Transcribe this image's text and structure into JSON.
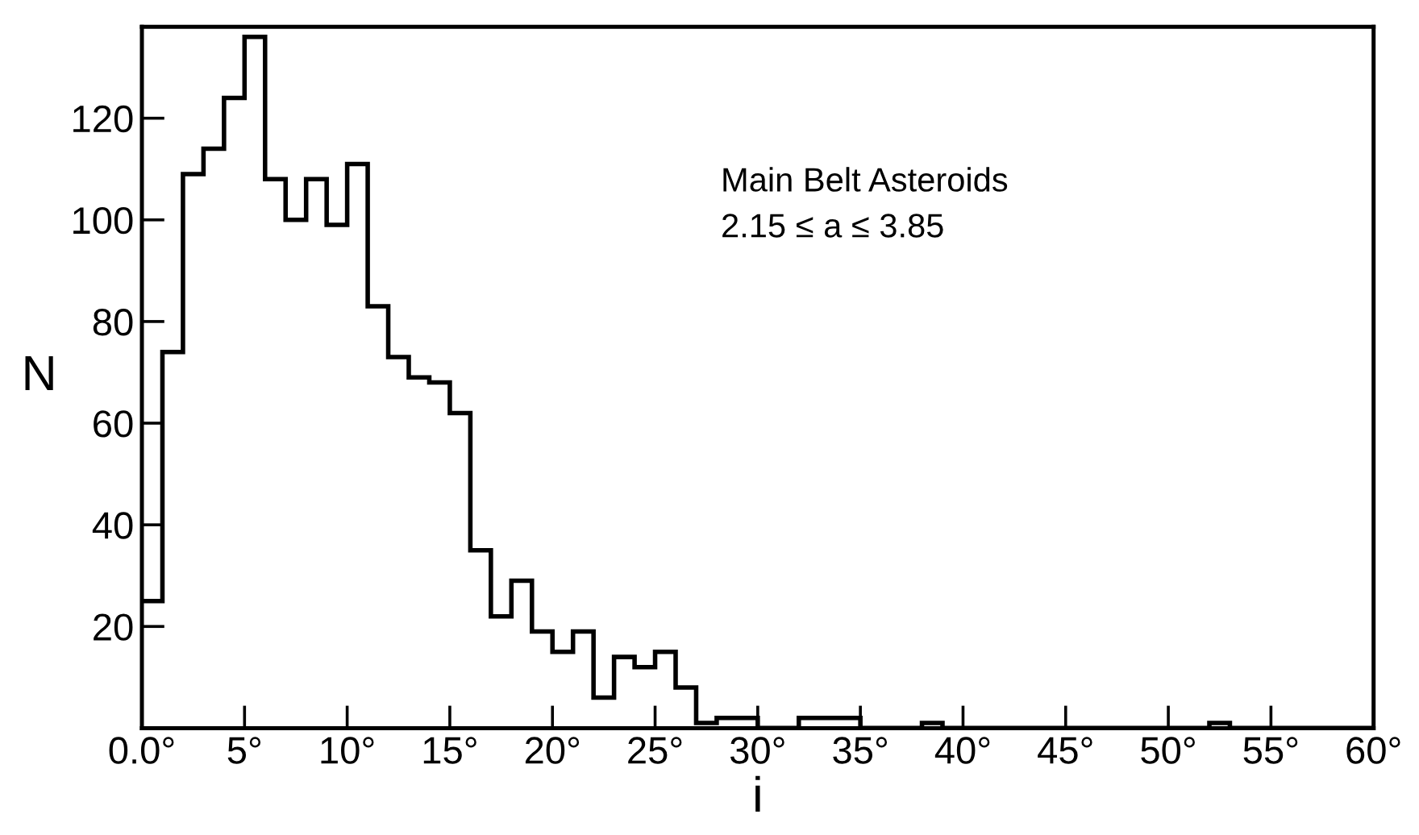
{
  "chart_data": {
    "type": "histogram",
    "xlabel": "i",
    "ylabel": "N",
    "annotations": [
      "Main Belt Asteroids\n2.15 ≤ a ≤ 3.85"
    ],
    "bins": [
      0,
      1,
      2,
      3,
      4,
      5,
      6,
      7,
      8,
      9,
      10,
      11,
      12,
      13,
      14,
      15,
      16,
      17,
      18,
      19,
      20,
      21,
      22,
      23,
      24,
      25,
      26,
      27,
      28,
      29,
      30,
      31,
      32,
      33,
      34,
      35,
      36,
      37,
      38,
      39,
      40,
      41,
      42,
      43,
      44,
      45,
      46,
      47,
      48,
      49,
      50,
      51,
      52,
      53,
      54,
      55,
      56,
      57,
      58,
      59,
      60
    ],
    "values": [
      25,
      74,
      109,
      114,
      124,
      136,
      108,
      100,
      108,
      99,
      111,
      83,
      73,
      69,
      68,
      62,
      35,
      22,
      29,
      19,
      15,
      19,
      6,
      14,
      12,
      15,
      8,
      1,
      2,
      2,
      0,
      0,
      2,
      2,
      2,
      0,
      0,
      0,
      1,
      0,
      0,
      0,
      0,
      0,
      0,
      0,
      0,
      0,
      0,
      0,
      0,
      0,
      1,
      0,
      0,
      0,
      0,
      0,
      0,
      0
    ],
    "color": "#000000",
    "xlim": [
      0,
      60
    ],
    "ylim": [
      0,
      138
    ],
    "xticks": [
      {
        "value": 0,
        "label": "0.0°"
      },
      {
        "value": 5,
        "label": "5°"
      },
      {
        "value": 10,
        "label": "10°"
      },
      {
        "value": 15,
        "label": "15°"
      },
      {
        "value": 20,
        "label": "20°"
      },
      {
        "value": 25,
        "label": "25°"
      },
      {
        "value": 30,
        "label": "30°"
      },
      {
        "value": 35,
        "label": "35°"
      },
      {
        "value": 40,
        "label": "40°"
      },
      {
        "value": 45,
        "label": "45°"
      },
      {
        "value": 50,
        "label": "50°"
      },
      {
        "value": 55,
        "label": "55°"
      },
      {
        "value": 60,
        "label": "60°"
      }
    ],
    "yticks": [
      20,
      40,
      60,
      80,
      100,
      120
    ],
    "grid": false,
    "legend": false
  }
}
